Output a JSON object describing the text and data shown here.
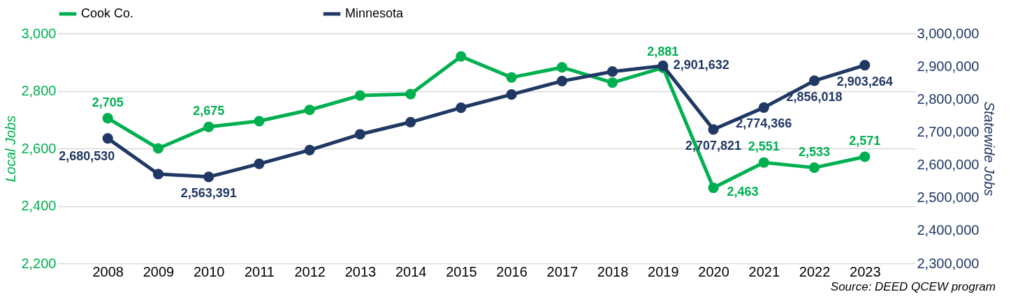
{
  "chart_data": {
    "type": "line",
    "categories": [
      "2008",
      "2009",
      "2010",
      "2011",
      "2012",
      "2013",
      "2014",
      "2015",
      "2016",
      "2017",
      "2018",
      "2019",
      "2020",
      "2021",
      "2022",
      "2023"
    ],
    "series": [
      {
        "name": "Cook Co.",
        "color": "#00b050",
        "axis": "y",
        "values": [
          2705,
          2600,
          2675,
          2695,
          2734,
          2784,
          2789,
          2920,
          2847,
          2882,
          2829,
          2881,
          2463,
          2551,
          2533,
          2571
        ],
        "value_labels": [
          "2,705",
          null,
          "2,675",
          null,
          null,
          null,
          null,
          null,
          null,
          null,
          null,
          "2,881",
          "2,463",
          "2,551",
          "2,533",
          "2,571"
        ]
      },
      {
        "name": "Minnesota",
        "color": "#203864",
        "axis": "y2",
        "values": [
          2680530,
          2572000,
          2563391,
          2603000,
          2645000,
          2693000,
          2730000,
          2774000,
          2814000,
          2855000,
          2884000,
          2901632,
          2707821,
          2774366,
          2856018,
          2903264
        ],
        "value_labels": [
          "2,680,530",
          null,
          "2,563,391",
          null,
          null,
          null,
          null,
          null,
          null,
          null,
          null,
          "2,901,632",
          "2,707,821",
          "2,774,366",
          "2,856,018",
          "2,903,264"
        ]
      }
    ],
    "ylabel": "Local Jobs",
    "y2label": "Statewide Jobs",
    "ylim": [
      2200,
      3000
    ],
    "yticks": [
      {
        "value": 2200,
        "label": "2,200"
      },
      {
        "value": 2400,
        "label": "2,400"
      },
      {
        "value": 2600,
        "label": "2,600"
      },
      {
        "value": 2800,
        "label": "2,800"
      },
      {
        "value": 3000,
        "label": "3,000"
      }
    ],
    "y2lim": [
      2300000,
      3000000
    ],
    "y2ticks": [
      {
        "value": 2300000,
        "label": "2,300,000"
      },
      {
        "value": 2400000,
        "label": "2,400,000"
      },
      {
        "value": 2500000,
        "label": "2,500,000"
      },
      {
        "value": 2600000,
        "label": "2,600,000"
      },
      {
        "value": 2700000,
        "label": "2,700,000"
      },
      {
        "value": 2800000,
        "label": "2,800,000"
      },
      {
        "value": 2900000,
        "label": "2,900,000"
      },
      {
        "value": 3000000,
        "label": "3,000,000"
      }
    ],
    "annotations": [
      "Source: DEED QCEW program"
    ],
    "grid": "y",
    "legend": "top",
    "marker": "circle",
    "line_style": "solid"
  }
}
